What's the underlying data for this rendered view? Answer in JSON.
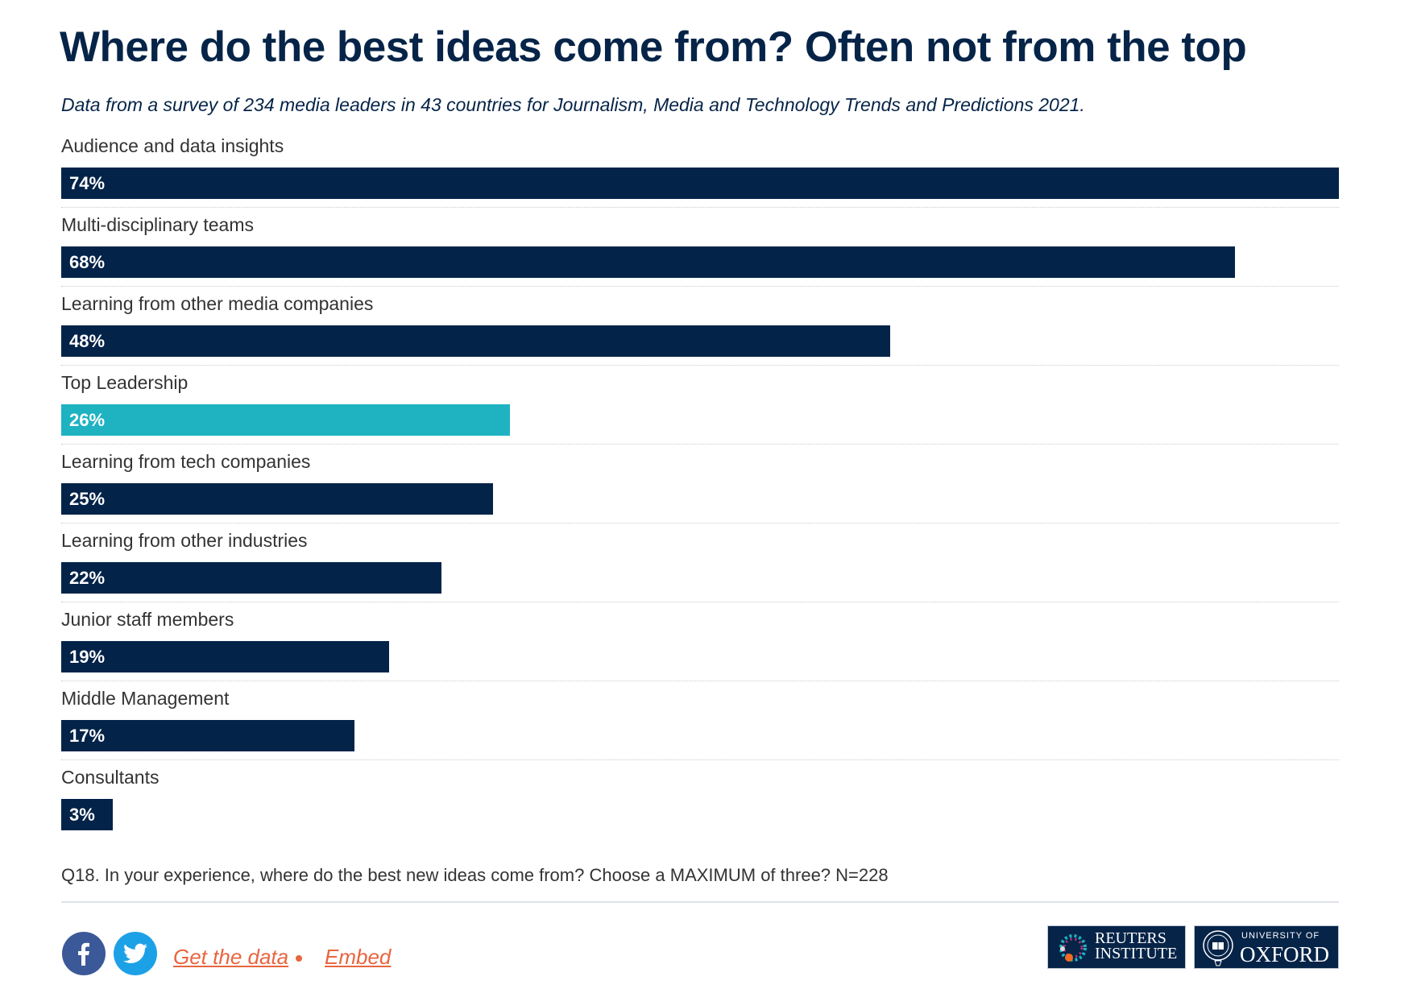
{
  "chart_data": {
    "type": "bar",
    "orientation": "horizontal",
    "title": "Where do the best ideas come from? Often not from the top",
    "subtitle": "Data from a survey of 234 media leaders in 43 countries for Journalism, Media and Technology Trends and Predictions 2021.",
    "categories": [
      "Audience and data insights",
      "Multi-disciplinary teams",
      "Learning from other media companies",
      "Top Leadership",
      "Learning from tech companies",
      "Learning from other industries",
      "Junior staff members",
      "Middle Management",
      "Consultants"
    ],
    "values": [
      74,
      68,
      48,
      26,
      25,
      22,
      19,
      17,
      3
    ],
    "value_labels": [
      "74%",
      "68%",
      "48%",
      "26%",
      "25%",
      "22%",
      "19%",
      "17%",
      "3%"
    ],
    "highlight_index": 3,
    "xlim": [
      0,
      74
    ],
    "unit": "%",
    "note": "Q18. In your experience, where do the best new ideas come from? Choose a MAXIMUM of three? N=228"
  },
  "colors": {
    "bar": "#032349",
    "highlight": "#1fb3c2",
    "link": "#e8653f",
    "facebook": "#3b5998",
    "twitter": "#1da1e6"
  },
  "footer": {
    "get_data": "Get the data",
    "embed": "Embed",
    "logo_reuters": [
      "REUTERS",
      "INSTITUTE"
    ],
    "logo_oxford": [
      "UNIVERSITY OF",
      "OXFORD"
    ]
  }
}
